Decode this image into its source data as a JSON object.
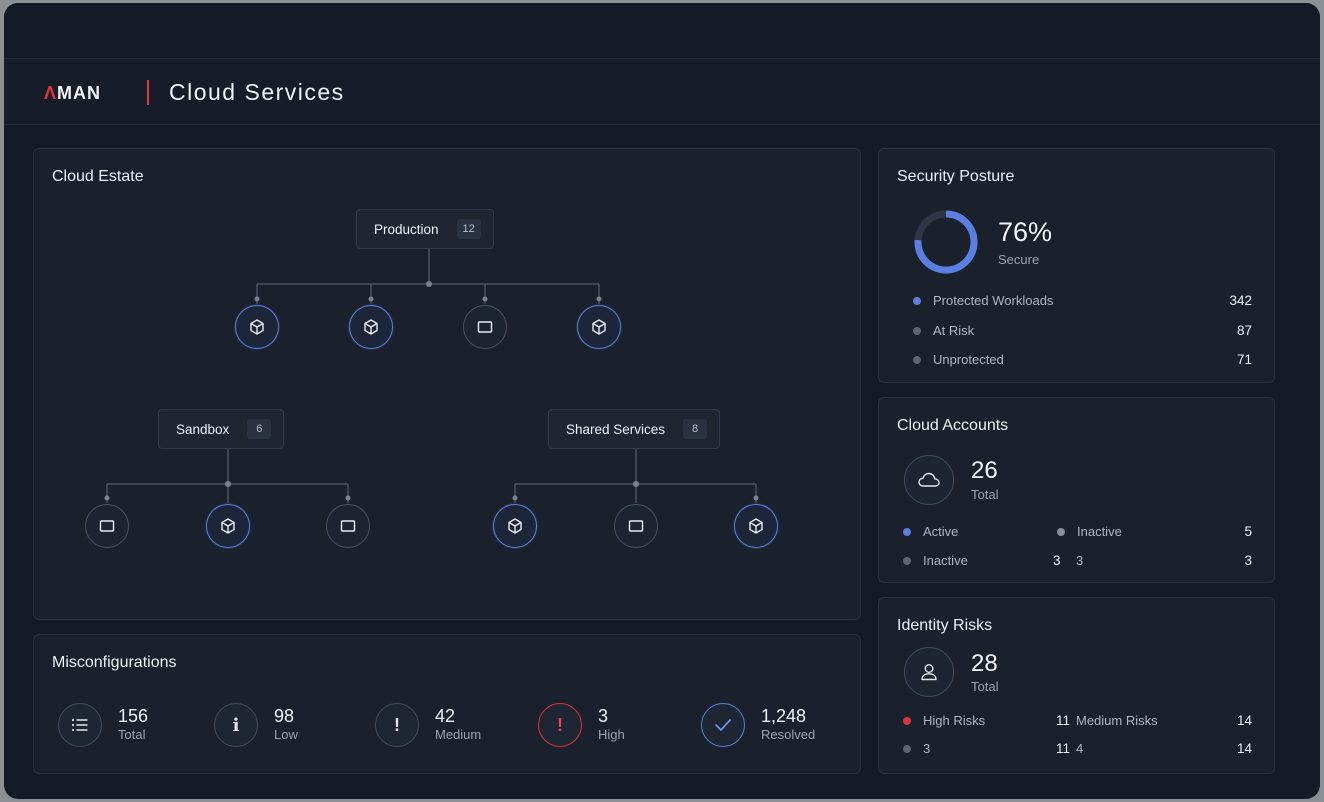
{
  "brand": {
    "logo_a": "Λ",
    "logo_rest": "MAN"
  },
  "header": {
    "title": "Cloud Services"
  },
  "colors": {
    "accent": "#5b7fe0",
    "danger": "#d8363e",
    "bg": "#151b26",
    "panel": "#1a212d"
  },
  "cloud_estate": {
    "title": "Cloud Estate",
    "groups": [
      {
        "name": "Production",
        "count": "12",
        "resources": [
          "cube-icon",
          "cube-icon",
          "monitor-icon",
          "cube-icon"
        ]
      },
      {
        "name": "Sandbox",
        "count": "6",
        "resources": [
          "monitor-icon",
          "cube-icon",
          "monitor-icon"
        ]
      },
      {
        "name": "Shared Services",
        "count": "8",
        "resources": [
          "cube-icon",
          "monitor-icon",
          "cube-icon"
        ]
      }
    ]
  },
  "misconfigurations": {
    "title": "Misconfigurations",
    "stats": [
      {
        "value": "156",
        "label": "Total",
        "icon": "list-icon"
      },
      {
        "value": "98",
        "label": "Low",
        "icon": "info-icon"
      },
      {
        "value": "42",
        "label": "Medium",
        "icon": "exclamation-icon"
      },
      {
        "value": "3",
        "label": "High",
        "icon": "alert-icon"
      },
      {
        "value": "1,248",
        "label": "Resolved",
        "icon": "check-icon"
      }
    ]
  },
  "security_posture": {
    "title": "Security Posture",
    "percent": 76,
    "percent_label": "76%",
    "sub": "Secure",
    "rows": [
      {
        "label": "Protected Workloads",
        "value": "342",
        "color": "#5b7fe0"
      },
      {
        "label": "At Risk",
        "value": "87",
        "color": "#5d6472"
      },
      {
        "label": "Unprotected",
        "value": "71",
        "color": "#5d6472"
      }
    ]
  },
  "cloud_accounts": {
    "title": "Cloud Accounts",
    "total": "26",
    "total_label": "Total",
    "icon": "cloud-icon",
    "rows": [
      {
        "left_label": "Active",
        "left_color": "#5b7fe0",
        "mid": "",
        "right_label": "Inactive",
        "value": "5"
      },
      {
        "left_label": "Inactive",
        "left_color": "#5d6472",
        "mid": "3",
        "right_label": "3",
        "value": "3"
      }
    ]
  },
  "identity_risks": {
    "title": "Identity Risks",
    "total": "28",
    "total_label": "Total",
    "icon": "user-icon",
    "rows": [
      {
        "left_label": "High Risks",
        "left_color": "#d8363e",
        "mid": "11",
        "right_label": "Medium Risks",
        "value": "14"
      },
      {
        "left_label": "3",
        "left_color": "#5d6472",
        "mid": "11",
        "right_label": "4",
        "value": "14"
      }
    ]
  }
}
